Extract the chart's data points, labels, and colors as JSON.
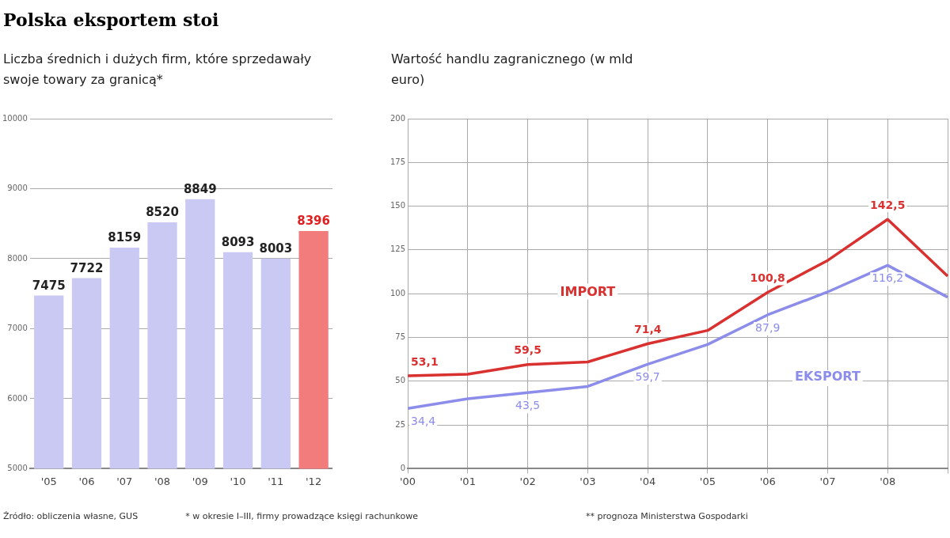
{
  "chart_data": [
    {
      "type": "bar",
      "title": "Polska eksportem stoi",
      "subtitle": "Liczba średnich i dużych firm, które sprzedawały swoje towary za granicą*",
      "categories": [
        "'05",
        "'06",
        "'07",
        "'08",
        "'09",
        "'10",
        "'11",
        "'12"
      ],
      "values": [
        7475,
        7722,
        8159,
        8520,
        8849,
        8093,
        8003,
        8396
      ],
      "colors": [
        "#c9c9f4",
        "#c9c9f4",
        "#c9c9f4",
        "#c9c9f4",
        "#c9c9f4",
        "#c9c9f4",
        "#c9c9f4",
        "#f27b7b"
      ],
      "ylim": [
        5000,
        10000
      ],
      "yticks": [
        5000,
        6000,
        7000,
        8000,
        9000,
        10000
      ],
      "grid": "y",
      "data_labels": true,
      "annotations": [
        "Źródło: obliczenia własne, GUS",
        "* w okresie I–III, firmy prowadzące księgi rachunkowe"
      ]
    },
    {
      "type": "line",
      "subtitle": "Wartość handlu zagranicznego (w mld euro)",
      "categories": [
        "'00",
        "'01",
        "'02",
        "'03",
        "'04",
        "'05",
        "'06",
        "'07",
        "'08",
        null
      ],
      "series": [
        {
          "name": "IMPORT",
          "color": "#d93030",
          "values": [
            53.1,
            54,
            59.5,
            61,
            71.4,
            79,
            100.8,
            119,
            142.5,
            110
          ],
          "value_labels": [
            "53,1",
            null,
            "59,5",
            null,
            "71,4",
            null,
            "100,8",
            null,
            "142,5",
            null
          ]
        },
        {
          "name": "EKSPORT",
          "color": "#8c8cea",
          "values": [
            34.4,
            40,
            43.5,
            47,
            59.7,
            71,
            87.9,
            101,
            116.2,
            98
          ],
          "value_labels": [
            "34,4",
            null,
            "43,5",
            null,
            "59,7",
            null,
            "87,9",
            null,
            "116,2",
            null
          ]
        }
      ],
      "ylim": [
        0,
        200
      ],
      "yticks": [
        0,
        25,
        50,
        75,
        100,
        125,
        150,
        175,
        200
      ],
      "grid": true,
      "annotations": [
        "** prognoza Ministerstwa Gospodarki"
      ]
    }
  ]
}
